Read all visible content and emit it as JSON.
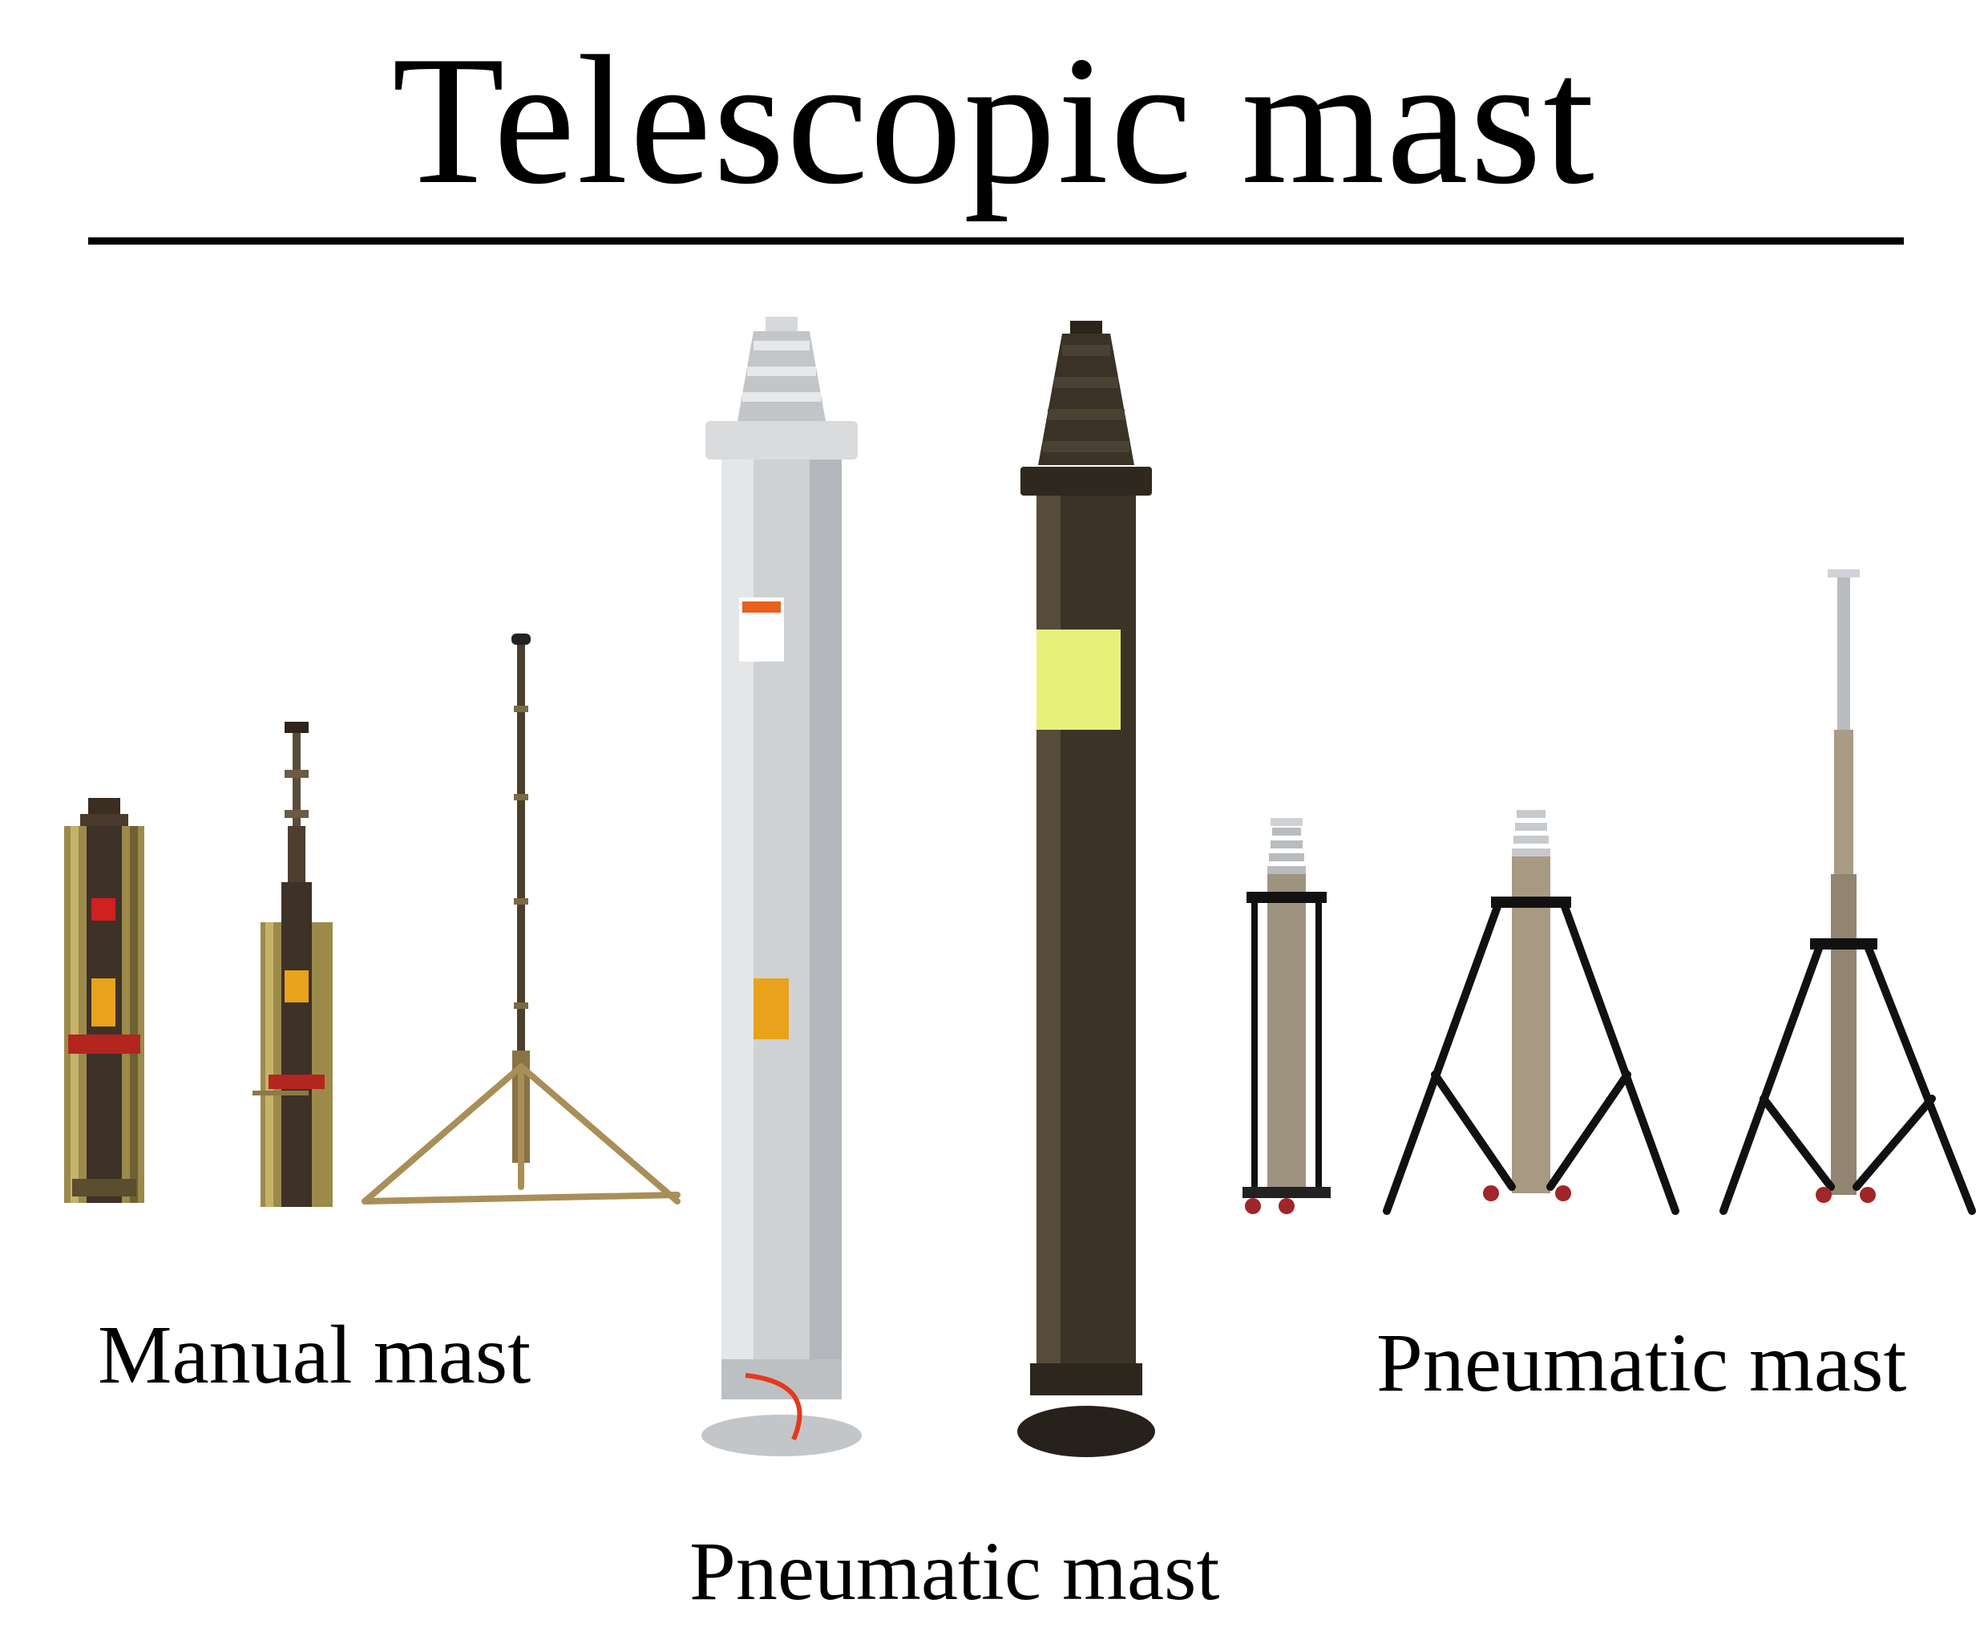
{
  "title": "Telescopic mast",
  "labels": {
    "manual": "Manual mast",
    "pneumatic_right": "Pneumatic mast",
    "pneumatic_center": "Pneumatic mast"
  },
  "products": [
    {
      "name": "manual-mast-retracted",
      "finish": "olive-zinc"
    },
    {
      "name": "manual-mast-partially-extended",
      "finish": "olive-zinc"
    },
    {
      "name": "manual-mast-tripod-extended",
      "finish": "brass"
    },
    {
      "name": "pneumatic-mast-silver",
      "finish": "aluminium"
    },
    {
      "name": "pneumatic-mast-dark",
      "finish": "bronze"
    },
    {
      "name": "pneumatic-mast-tripod-small",
      "finish": "black"
    },
    {
      "name": "pneumatic-mast-tripod-medium",
      "finish": "black"
    },
    {
      "name": "pneumatic-mast-tripod-tall",
      "finish": "black"
    }
  ],
  "colors": {
    "text": "#000000",
    "silver": "#cfd2d5",
    "bronze": "#3b3328",
    "olive": "#8a7a45",
    "tripod": "#111111",
    "warning": "#e8601c"
  }
}
